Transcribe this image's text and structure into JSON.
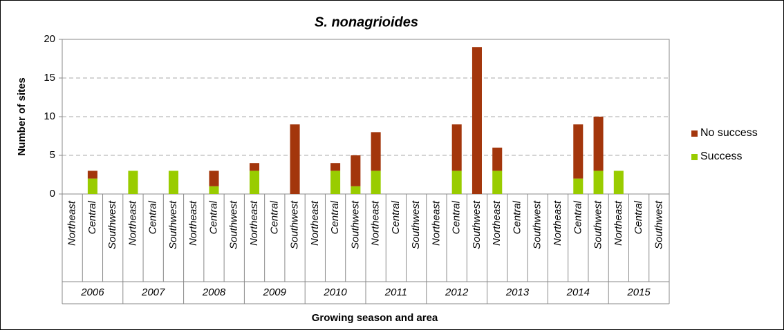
{
  "chart_data": {
    "type": "stacked_bar",
    "title": "S. nonagrioides",
    "x_label": "Growing season and area",
    "y_label": "Number of sites",
    "categories": [
      "Northeast",
      "Central",
      "Southwest",
      "Northeast",
      "Central",
      "Southwest",
      "Northeast",
      "Central",
      "Southwest",
      "Northeast",
      "Central",
      "Southwest",
      "Northeast",
      "Central",
      "Southwest",
      "Northeast",
      "Central",
      "Southwest",
      "Northeast",
      "Central",
      "Southwest",
      "Northeast",
      "Central",
      "Southwest",
      "Northeast",
      "Central",
      "Southwest",
      "Northeast",
      "Central",
      "Southwest"
    ],
    "groups": [
      "2006",
      "2007",
      "2008",
      "2009",
      "2010",
      "2011",
      "2012",
      "2013",
      "2014",
      "2015"
    ],
    "series": [
      {
        "name": "Success",
        "color": "#99cc00",
        "values": [
          0,
          2,
          0,
          3,
          0,
          3,
          0,
          1,
          0,
          3,
          0,
          0,
          0,
          3,
          1,
          3,
          0,
          0,
          0,
          3,
          0,
          3,
          0,
          0,
          0,
          2,
          3,
          3,
          0,
          0
        ]
      },
      {
        "name": "No success",
        "color": "#a3360c",
        "values": [
          0,
          1,
          0,
          0,
          0,
          0,
          0,
          2,
          0,
          1,
          0,
          9,
          0,
          1,
          4,
          5,
          0,
          0,
          0,
          6,
          19,
          3,
          0,
          0,
          0,
          7,
          7,
          0,
          0,
          0
        ]
      }
    ],
    "ylim": [
      0,
      20
    ],
    "yticks": [
      0,
      5,
      10,
      15,
      20
    ],
    "grid": true,
    "legend_position": "right"
  }
}
